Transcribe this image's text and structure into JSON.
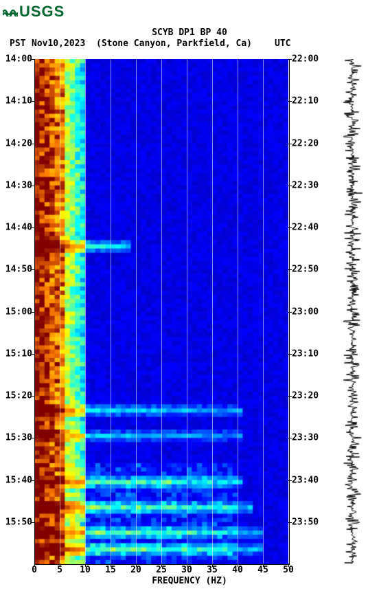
{
  "logo": {
    "text": "USGS",
    "color": "#00672f"
  },
  "header": {
    "title": "SCYB DP1 BP 40",
    "pst_label": "PST",
    "date": "Nov10,2023",
    "station": "(Stone Canyon, Parkfield, Ca)",
    "utc_label": "UTC"
  },
  "spectrogram": {
    "type": "heatmap",
    "xlabel": "FREQUENCY (HZ)",
    "xlim": [
      0,
      50
    ],
    "xtick_step": 5,
    "xticks": [
      0,
      5,
      10,
      15,
      20,
      25,
      30,
      35,
      40,
      45,
      50
    ],
    "left_ticks": [
      "14:00",
      "14:10",
      "14:20",
      "14:30",
      "14:40",
      "14:50",
      "15:00",
      "15:10",
      "15:20",
      "15:30",
      "15:40",
      "15:50"
    ],
    "right_ticks": [
      "22:00",
      "22:10",
      "22:20",
      "22:30",
      "22:40",
      "22:50",
      "23:00",
      "23:10",
      "23:20",
      "23:30",
      "23:40",
      "23:50"
    ],
    "y_rows": 120,
    "x_cols": 50,
    "grid_color": "rgba(255,255,255,0.5)",
    "colormap": [
      {
        "v": 0.0,
        "c": "#000080"
      },
      {
        "v": 0.2,
        "c": "#0000ff"
      },
      {
        "v": 0.4,
        "c": "#00ffff"
      },
      {
        "v": 0.6,
        "c": "#ffff00"
      },
      {
        "v": 0.8,
        "c": "#ff8000"
      },
      {
        "v": 1.0,
        "c": "#800000"
      }
    ],
    "low_freq_band": {
      "start": 0,
      "end": 6,
      "intensity": [
        0.75,
        1.0
      ]
    },
    "transition_band": {
      "start": 6,
      "end": 10,
      "intensity": [
        0.35,
        0.55
      ]
    },
    "bg_band": {
      "start": 10,
      "end": 50,
      "intensity": [
        0.12,
        0.22
      ]
    },
    "horizontal_events": [
      {
        "row": 44,
        "span": [
          0,
          18
        ],
        "boost": 0.35
      },
      {
        "row": 83,
        "span": [
          0,
          40
        ],
        "boost": 0.25
      },
      {
        "row": 89,
        "span": [
          0,
          40
        ],
        "boost": 0.22
      },
      {
        "row": 100,
        "span": [
          0,
          40
        ],
        "boost": 0.28
      },
      {
        "row": 106,
        "span": [
          0,
          42
        ],
        "boost": 0.3
      },
      {
        "row": 112,
        "span": [
          0,
          44
        ],
        "boost": 0.28
      },
      {
        "row": 116,
        "span": [
          0,
          44
        ],
        "boost": 0.3
      }
    ],
    "title_fontsize": 13,
    "tick_fontsize": 13
  },
  "seismogram": {
    "color": "#000000",
    "amplitude_base": 6,
    "amplitude_noise": 8
  }
}
